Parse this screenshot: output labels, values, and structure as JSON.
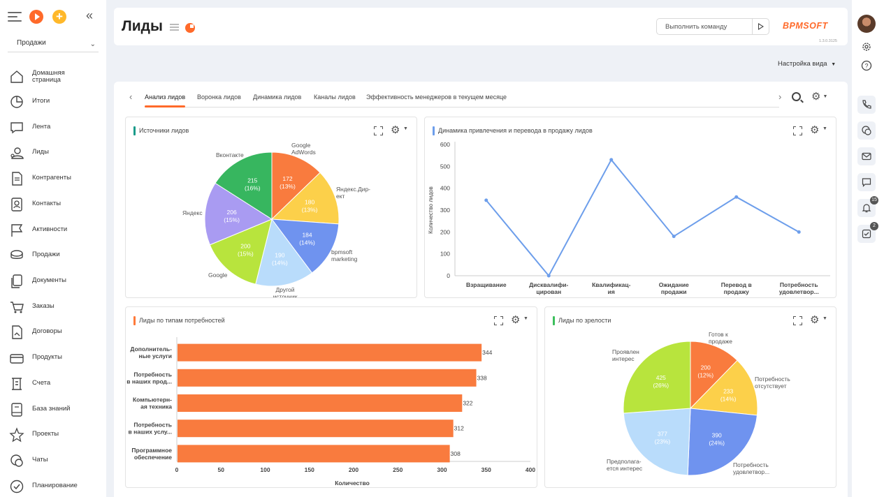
{
  "sidebar": {
    "workspace": "Продажи",
    "items": [
      {
        "label": "Домашняя страница",
        "icon": "home-icon"
      },
      {
        "label": "Итоги",
        "icon": "pie-chart-icon"
      },
      {
        "label": "Лента",
        "icon": "feed-icon"
      },
      {
        "label": "Лиды",
        "icon": "leads-icon"
      },
      {
        "label": "Контрагенты",
        "icon": "accounts-icon"
      },
      {
        "label": "Контакты",
        "icon": "contacts-icon"
      },
      {
        "label": "Активности",
        "icon": "flag-icon"
      },
      {
        "label": "Продажи",
        "icon": "opportunities-icon"
      },
      {
        "label": "Документы",
        "icon": "documents-icon"
      },
      {
        "label": "Заказы",
        "icon": "cart-icon"
      },
      {
        "label": "Договоры",
        "icon": "contract-icon"
      },
      {
        "label": "Продукты",
        "icon": "products-icon"
      },
      {
        "label": "Счета",
        "icon": "invoice-icon"
      },
      {
        "label": "База знаний",
        "icon": "knowledge-base-icon"
      },
      {
        "label": "Проекты",
        "icon": "star-icon"
      },
      {
        "label": "Чаты",
        "icon": "chat-icon"
      },
      {
        "label": "Планирование",
        "icon": "check-circle-icon"
      }
    ]
  },
  "header": {
    "title": "Лиды",
    "command_placeholder": "Выполнить команду",
    "logo": "BPMSOFT",
    "version": "1.3.0.3125",
    "view_settings": "Настройка вида"
  },
  "tabs": [
    {
      "label": "Анализ лидов",
      "active": true
    },
    {
      "label": "Воронка лидов",
      "active": false
    },
    {
      "label": "Динамика лидов",
      "active": false
    },
    {
      "label": "Каналы лидов",
      "active": false
    },
    {
      "label": "Эффективность менеджеров в текущем месяце",
      "active": false
    }
  ],
  "widgets": {
    "sources": {
      "title": "Источники лидов",
      "accent": "#1a9b8a"
    },
    "dynamics": {
      "title": "Динамика привлечения и перевода в продажу лидов",
      "accent": "#6d9eeb"
    },
    "needs": {
      "title": "Лиды по типам потребностей",
      "accent": "#ff7a3a"
    },
    "maturity": {
      "title": "Лиды по зрелости",
      "accent": "#3cbf5c"
    }
  },
  "rail": {
    "notifications_badge": "15",
    "tasks_badge": "2"
  },
  "chart_data": [
    {
      "type": "pie",
      "title": "Источники лидов",
      "slices": [
        {
          "label": "Google AdWords",
          "value": 172,
          "percent": "13%",
          "color": "#f97b3e"
        },
        {
          "label": "Яндекс.Директ",
          "value": 180,
          "percent": "13%",
          "color": "#fcd04a"
        },
        {
          "label": "bpmsoft marketing",
          "value": 184,
          "percent": "14%",
          "color": "#6f93ef"
        },
        {
          "label": "Другой источник",
          "value": 190,
          "percent": "14%",
          "color": "#b9dcfb"
        },
        {
          "label": "Google",
          "value": 200,
          "percent": "15%",
          "color": "#b8e43d"
        },
        {
          "label": "Яндекс",
          "value": 206,
          "percent": "15%",
          "color": "#a99bf2"
        },
        {
          "label": "Вконтакте",
          "value": 215,
          "percent": "16%",
          "color": "#37b65f"
        }
      ]
    },
    {
      "type": "line",
      "title": "Динамика привлечения и перевода в продажу лидов",
      "ylabel": "Количество лидов",
      "ylim": [
        0,
        600
      ],
      "yticks": [
        0,
        100,
        200,
        300,
        400,
        500,
        600
      ],
      "categories": [
        "Взращивание",
        "Дисквалифи-цирован",
        "Квалификац-ия",
        "Ожидание продажи",
        "Перевод в продажу",
        "Потребность удовлетвор..."
      ],
      "values": [
        345,
        0,
        530,
        180,
        360,
        200
      ],
      "color": "#6d9eeb"
    },
    {
      "type": "bar",
      "orientation": "horizontal",
      "title": "Лиды по типам потребностей",
      "xlabel": "Количество",
      "xlim": [
        0,
        400
      ],
      "xticks": [
        0,
        50,
        100,
        150,
        200,
        250,
        300,
        350,
        400
      ],
      "categories": [
        "Дополнитель-ные услуги",
        "Потребность в наших прод...",
        "Компьютерн-ая техника",
        "Потребность в наших услу...",
        "Программное обеспечение"
      ],
      "values": [
        344,
        338,
        322,
        312,
        308
      ],
      "color": "#f97b3e"
    },
    {
      "type": "pie",
      "title": "Лиды по зрелости",
      "slices": [
        {
          "label": "Готов к продаже",
          "value": 200,
          "percent": "12%",
          "color": "#f97b3e"
        },
        {
          "label": "Потребность отсутствует",
          "value": 233,
          "percent": "14%",
          "color": "#fcd04a"
        },
        {
          "label": "Потребность удовлетвор...",
          "value": 390,
          "percent": "24%",
          "color": "#6f93ef"
        },
        {
          "label": "Предполага-ется интерес",
          "value": 377,
          "percent": "23%",
          "color": "#b9dcfb"
        },
        {
          "label": "Проявлен интерес",
          "value": 425,
          "percent": "26%",
          "color": "#b8e43d"
        }
      ]
    }
  ]
}
